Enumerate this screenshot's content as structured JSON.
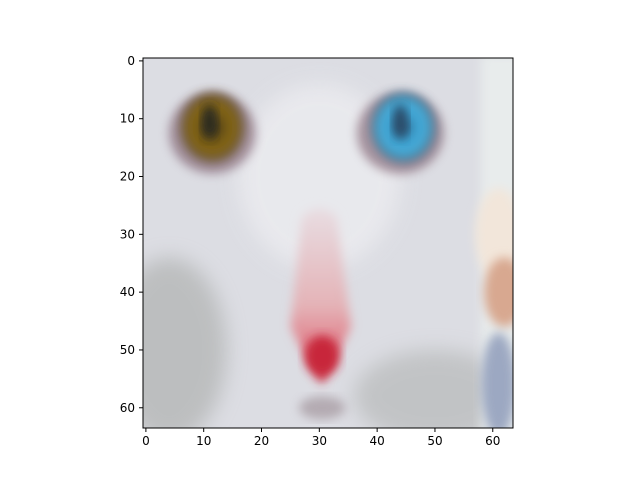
{
  "chart_data": {
    "type": "heatmap",
    "title": "",
    "xlabel": "",
    "ylabel": "",
    "image_size": [
      64,
      64
    ],
    "x_ticks": [
      0,
      10,
      20,
      30,
      40,
      50,
      60
    ],
    "y_ticks": [
      0,
      10,
      20,
      30,
      40,
      50,
      60
    ],
    "xlim": [
      -0.5,
      63.5
    ],
    "ylim": [
      63.5,
      -0.5
    ],
    "grid": false,
    "colors": {
      "fur": "#dcdde3",
      "fur_shadow": "#a8aaa8",
      "left_eye": "#8a6a12",
      "right_eye": "#3a9ccc",
      "pupil": "#2a2a22",
      "nose": "#e4a9ad",
      "nose_tip": "#c8283a",
      "background_right": "#d8a890"
    }
  }
}
